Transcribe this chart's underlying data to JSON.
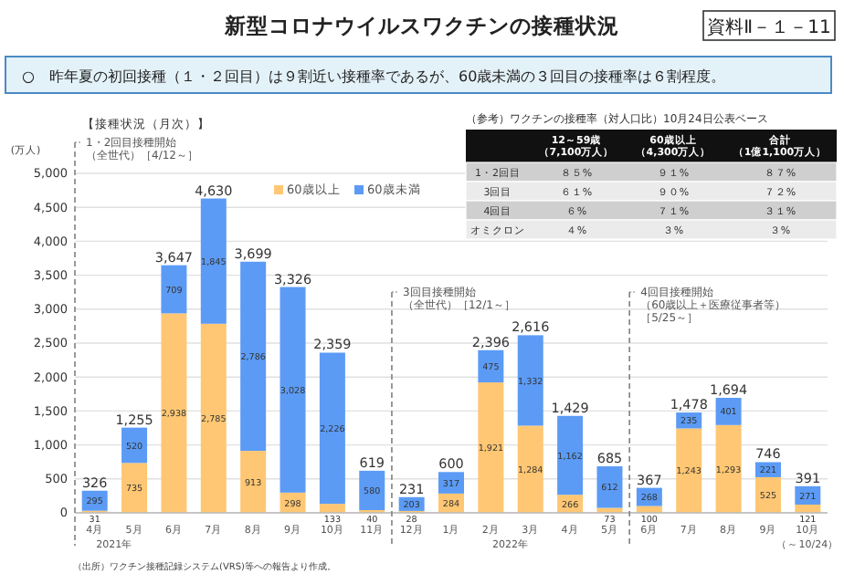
{
  "chart_data": [
    {
      "type": "bar",
      "title": "新型コロナウイルスワクチンの接種状況",
      "subtitle": "【接種状況（月次）】",
      "ylabel": "(万人)",
      "categories": [
        "4月",
        "5月",
        "6月",
        "7月",
        "8月",
        "9月",
        "10月",
        "11月",
        "12月",
        "1月",
        "2月",
        "3月",
        "4月",
        "5月",
        "6月",
        "7月",
        "8月",
        "9月",
        "10月"
      ],
      "stacked": true,
      "series": [
        {
          "name": "60歳以上",
          "color": "#ffc773",
          "values": [
            31,
            735,
            2938,
            2785,
            913,
            298,
            133,
            40,
            28,
            284,
            1921,
            1284,
            266,
            73,
            100,
            1243,
            1293,
            525,
            121
          ],
          "value_labels": [
            "31",
            "735",
            "2,938",
            "2,785",
            "913",
            "298",
            "133",
            "40",
            "28",
            "284",
            "1,921",
            "1,284",
            "266",
            "73",
            "100",
            "1,243",
            "1,293",
            "525",
            "121"
          ]
        },
        {
          "name": "60歳未満",
          "color": "#5b9bf5",
          "values": [
            295,
            520,
            709,
            1845,
            2786,
            3028,
            2226,
            580,
            203,
            317,
            475,
            1332,
            1162,
            612,
            268,
            235,
            401,
            221,
            271
          ],
          "value_labels": [
            "295",
            "520",
            "709",
            "1,845",
            "2,786",
            "3,028",
            "2,226",
            "580",
            "203",
            "317",
            "475",
            "1,332",
            "1,162",
            "612",
            "268",
            "235",
            "401",
            "221",
            "271"
          ]
        }
      ],
      "totals": [
        "326",
        "1,255",
        "3,647",
        "4,630",
        "3,699",
        "3,326",
        "2,359",
        "619",
        "231",
        "600",
        "2,396",
        "2,616",
        "1,429",
        "685",
        "367",
        "1,478",
        "1,694",
        "746",
        "391"
      ],
      "ylim": [
        0,
        5000
      ],
      "yticks": [
        0,
        500,
        {
          "value": 1000,
          "label": "1,000"
        },
        {
          "value": 1500,
          "label": "1,500"
        },
        {
          "value": 2000,
          "label": "2,000"
        },
        {
          "value": 2500,
          "label": "2,500"
        },
        {
          "value": 3000,
          "label": "3,000"
        },
        {
          "value": 3500,
          "label": "3,500"
        },
        {
          "value": 4000,
          "label": "4,000"
        },
        {
          "value": 4500,
          "label": "4,500"
        },
        {
          "value": 5000,
          "label": "5,000"
        }
      ],
      "grid": "y",
      "legend": "top",
      "annotations": [
        "資料Ⅱ－１－11",
        "○　昨年夏の初回接種（１・２回目）は９割近い接種率であるが、60歳未満の３回目の接種率は６割程度。",
        "2021年",
        "2022年",
        "（～10/24）",
        "（出所）ワクチン接種記録システム(VRS)等への報告より作成。",
        "1・2回目接種開始（全世代）［4/12～］",
        "3回目接種開始（全世代）［12/1～］",
        "4回目接種開始（60歳以上＋医療従事者等）［5/25～］"
      ]
    },
    {
      "type": "other",
      "title": "（参考）ワクチンの接種率（対人口比）10月24日公表ベース",
      "categories": [
        "12～59歳（7,100万人）",
        "60歳以上（4,300万人）",
        "合計（1億1,100万人）"
      ],
      "y_categories": [
        "1・2回目",
        "3回目",
        "4回目",
        "オミクロン"
      ],
      "cell_labels": [
        [
          "８５%",
          "９１%",
          "８７%"
        ],
        [
          "６１%",
          "９０%",
          "７２%"
        ],
        [
          "６%",
          "７１%",
          "３１%"
        ],
        [
          "４%",
          "３%",
          "３%"
        ]
      ]
    }
  ]
}
